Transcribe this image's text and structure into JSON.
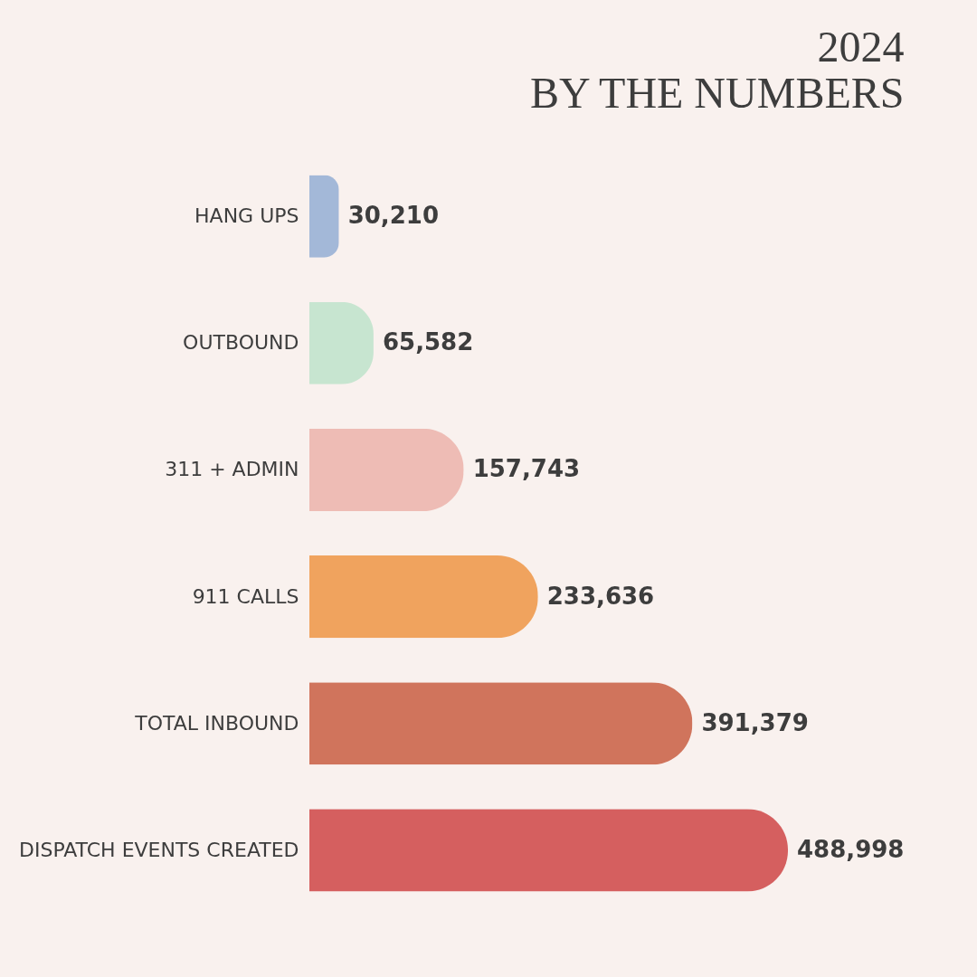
{
  "chart_data": {
    "type": "bar",
    "title": "2024",
    "subtitle": "BY THE NUMBERS",
    "orientation": "horizontal",
    "categories": [
      "HANG UPS",
      "OUTBOUND",
      "311 + ADMIN",
      "911 CALLS",
      "TOTAL INBOUND",
      "DISPATCH EVENTS CREATED"
    ],
    "values": [
      30210,
      65582,
      157743,
      233636,
      391379,
      488998
    ],
    "colors": [
      "#a3b8d8",
      "#c7e5d0",
      "#eebcb5",
      "#f0a35e",
      "#d0745c",
      "#d55f5f"
    ],
    "value_labels": [
      "30,210",
      "65,582",
      "157,743",
      "233,636",
      "391,379",
      "488,998"
    ]
  }
}
